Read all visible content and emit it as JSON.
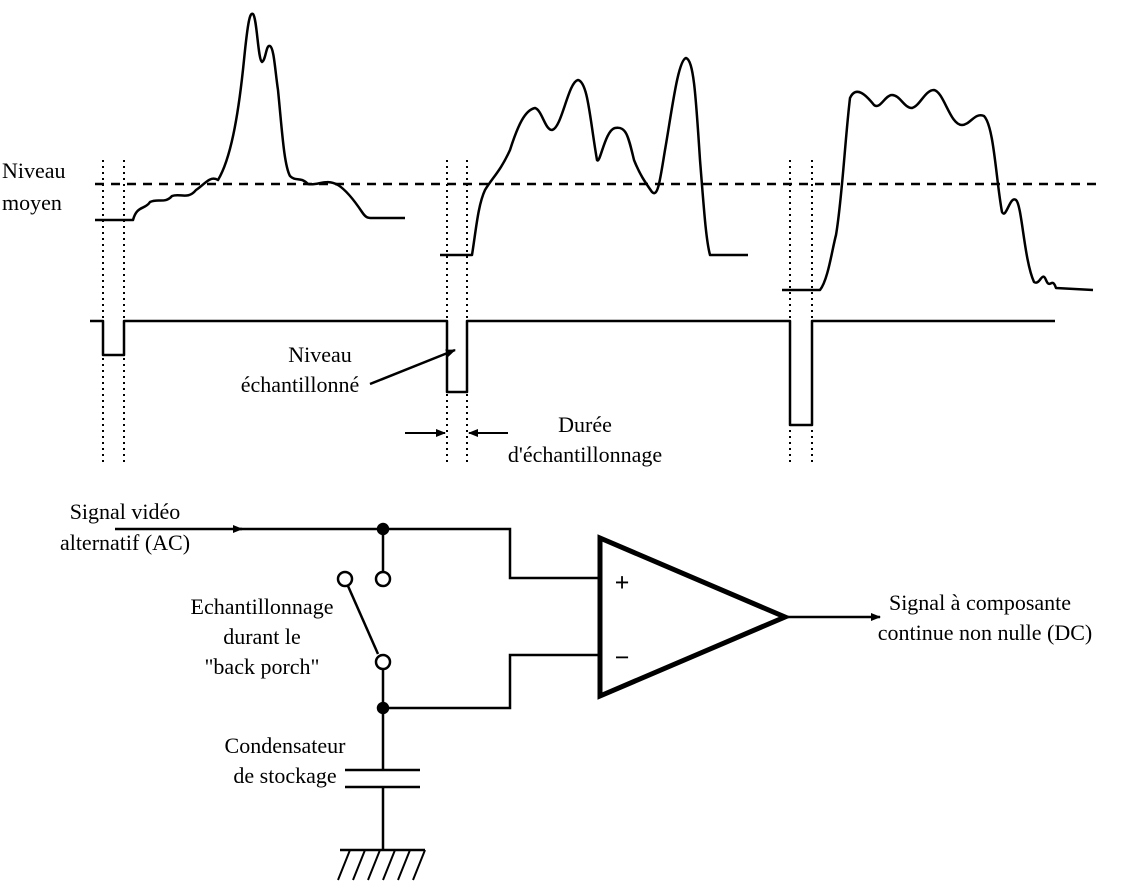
{
  "labels": {
    "average_level": [
      "Niveau",
      "moyen"
    ],
    "sampled_level": [
      "Niveau",
      "échantillonné"
    ],
    "sampling_duration": [
      "Durée",
      "d'échantillonnage"
    ],
    "input_signal": [
      "Signal vidéo",
      "alternatif (AC)"
    ],
    "sampling_switch": [
      "Echantillonnage",
      "durant le",
      "\"back porch\""
    ],
    "capacitor": [
      "Condensateur",
      "de stockage"
    ],
    "output_signal": [
      "Signal à composante",
      "continue non nulle (DC)"
    ]
  },
  "amplifier": {
    "plus": "+",
    "minus": "−"
  }
}
